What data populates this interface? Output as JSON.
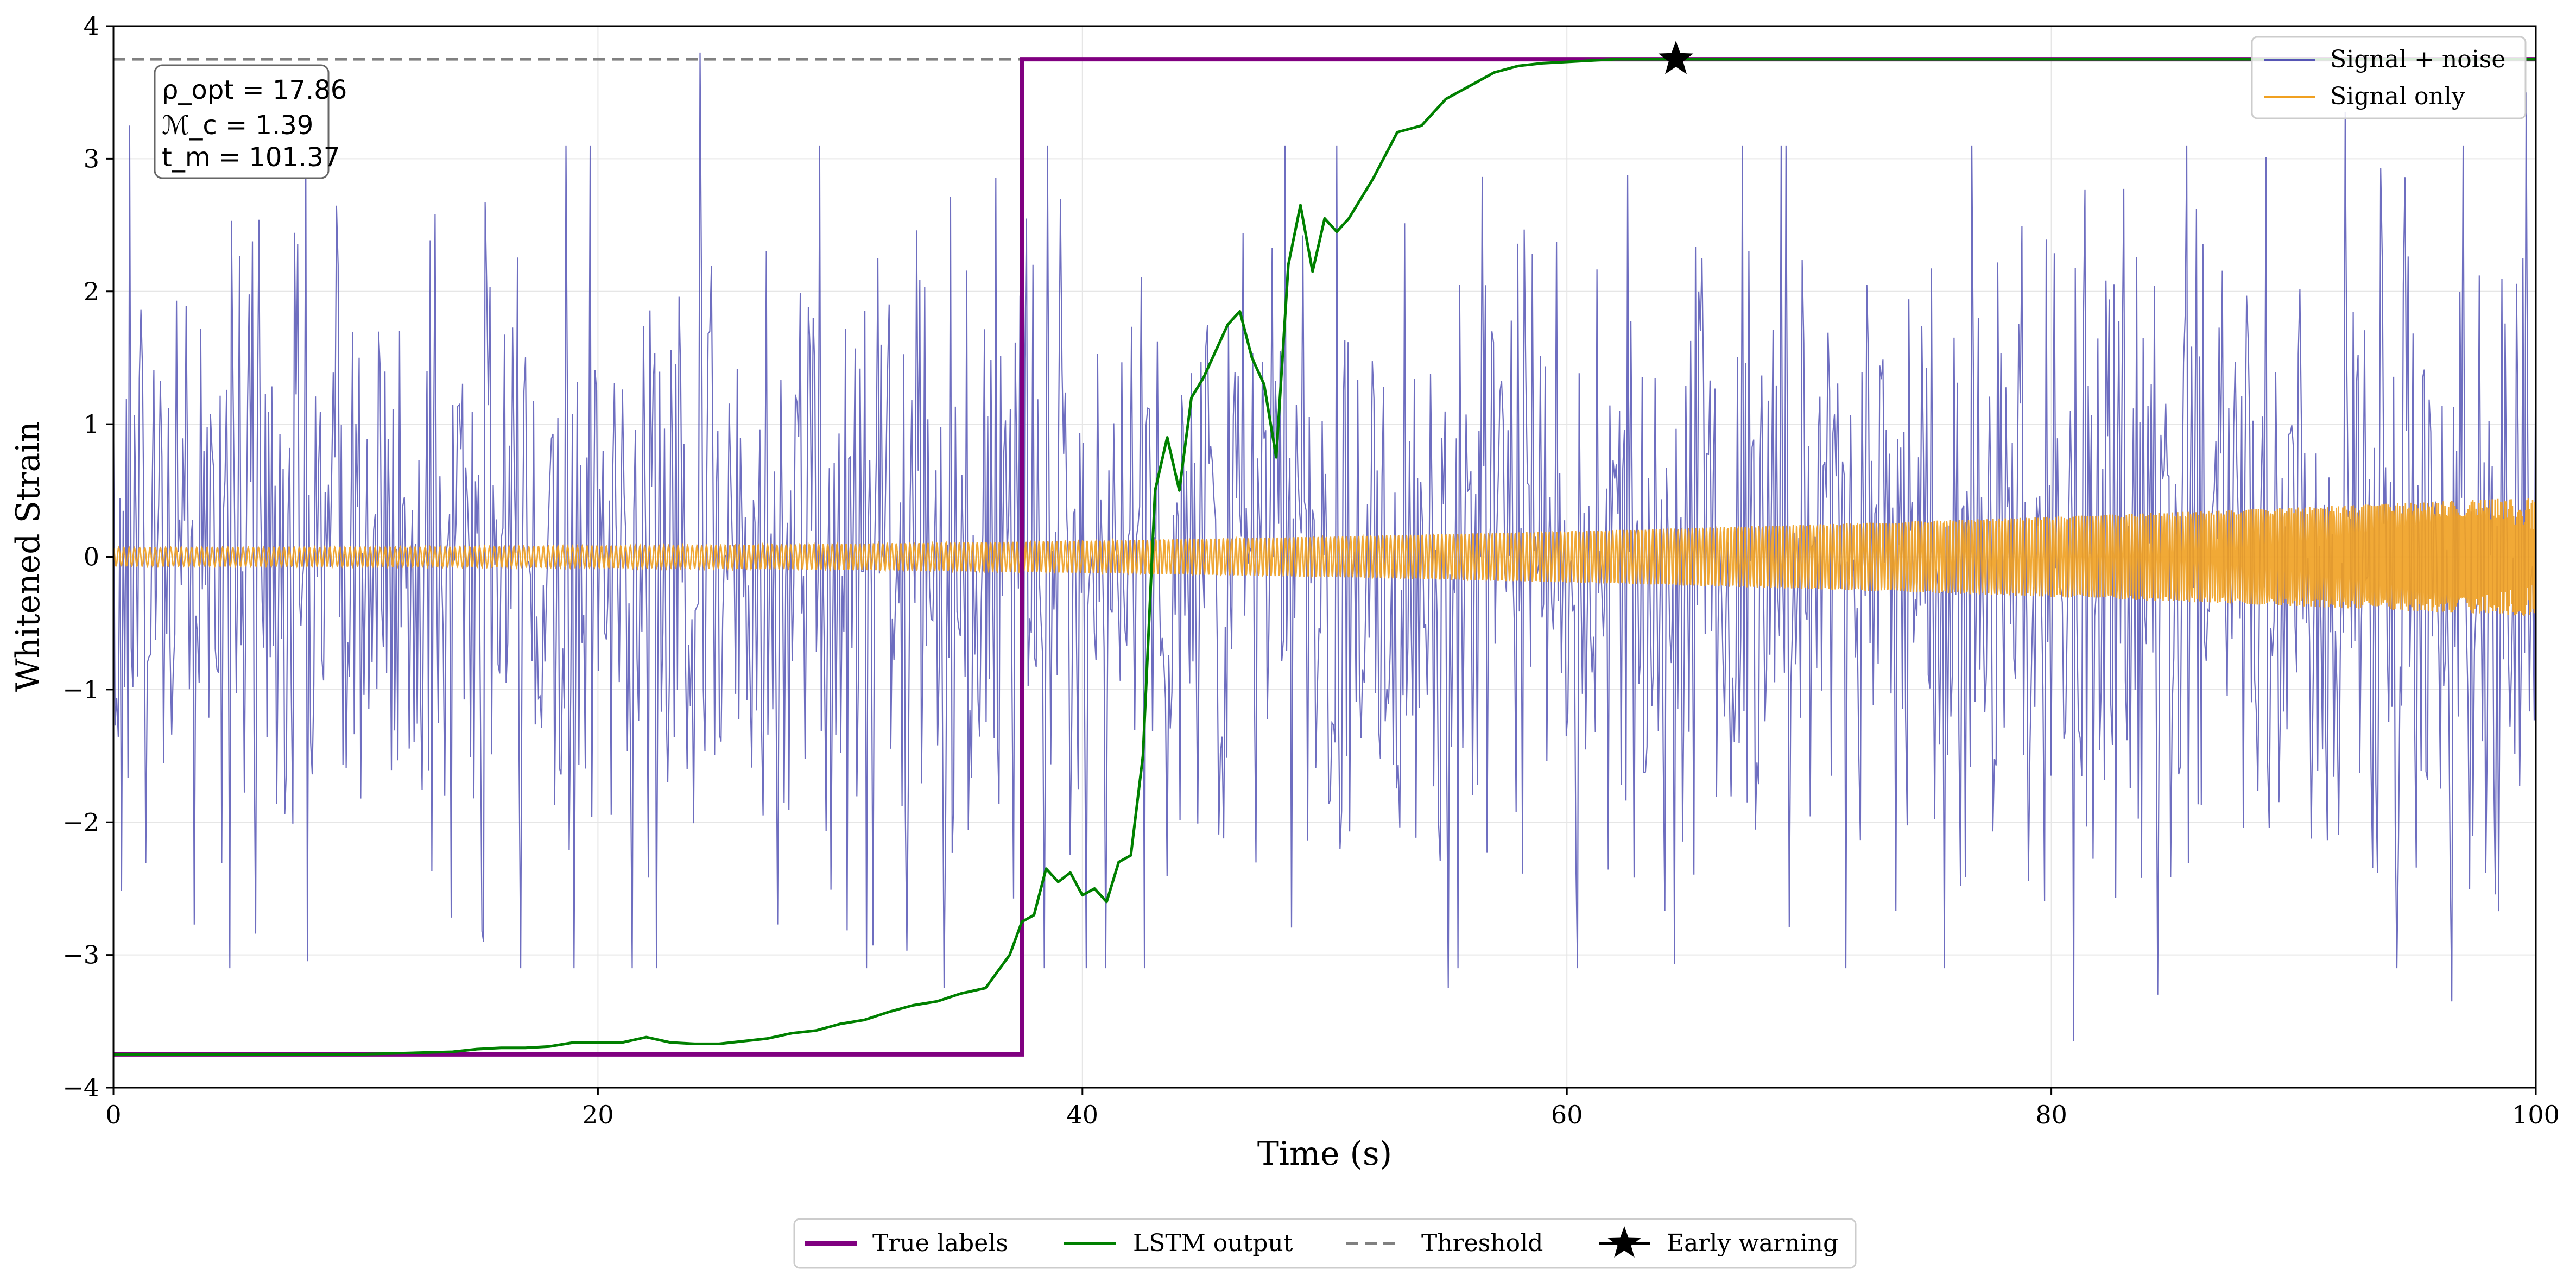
{
  "chart_data": {
    "type": "line",
    "xlabel": "Time (s)",
    "ylabel": "Whitened Strain",
    "xlim": [
      0,
      100
    ],
    "ylim": [
      -4,
      4
    ],
    "xticks": [
      0,
      20,
      40,
      60,
      80,
      100
    ],
    "yticks": [
      -4,
      -3,
      -2,
      -1,
      0,
      1,
      2,
      3,
      4
    ],
    "xtick_labels": [
      "0",
      "20",
      "40",
      "60",
      "80",
      "100"
    ],
    "ytick_labels": [
      "−4",
      "−3",
      "−2",
      "−1",
      "0",
      "1",
      "2",
      "3",
      "4"
    ],
    "grid": true,
    "threshold": {
      "name": "Threshold",
      "value": 3.75,
      "color": "#808080"
    },
    "true_labels": {
      "name": "True labels",
      "color": "#800080",
      "x": [
        0,
        37.5,
        37.5,
        100
      ],
      "y": [
        -3.75,
        -3.75,
        3.75,
        3.75
      ]
    },
    "lstm_output": {
      "name": "LSTM output",
      "color": "#008000",
      "x": [
        0,
        10,
        12,
        14,
        15,
        16,
        17,
        18,
        19,
        20,
        21,
        22,
        23,
        24,
        25,
        26,
        27,
        28,
        29,
        30,
        31,
        32,
        33,
        34,
        35,
        36,
        37,
        37.5,
        38,
        38.5,
        39,
        39.5,
        40,
        40.5,
        41,
        41.5,
        42,
        42.5,
        43,
        43.5,
        44,
        44.5,
        45,
        45.5,
        46,
        46.5,
        47,
        47.5,
        48,
        48.5,
        49,
        49.5,
        50,
        50.5,
        51,
        52,
        53,
        54,
        55,
        56,
        57,
        58,
        59,
        60,
        61,
        62,
        64.5,
        100
      ],
      "y": [
        -3.75,
        -3.75,
        -3.74,
        -3.73,
        -3.71,
        -3.7,
        -3.7,
        -3.69,
        -3.66,
        -3.66,
        -3.66,
        -3.62,
        -3.66,
        -3.67,
        -3.67,
        -3.65,
        -3.63,
        -3.59,
        -3.57,
        -3.52,
        -3.49,
        -3.43,
        -3.38,
        -3.35,
        -3.29,
        -3.25,
        -3.0,
        -2.75,
        -2.7,
        -2.35,
        -2.45,
        -2.38,
        -2.55,
        -2.5,
        -2.6,
        -2.3,
        -2.25,
        -1.5,
        0.5,
        0.9,
        0.5,
        1.2,
        1.35,
        1.55,
        1.75,
        1.85,
        1.5,
        1.3,
        0.75,
        2.2,
        2.65,
        2.15,
        2.55,
        2.45,
        2.55,
        2.85,
        3.2,
        3.25,
        3.45,
        3.55,
        3.65,
        3.7,
        3.72,
        3.73,
        3.74,
        3.75,
        3.75,
        3.75
      ]
    },
    "early_warning": {
      "name": "Early warning",
      "x": 64.5,
      "y": 3.75
    },
    "signal_noise": {
      "name": "Signal + noise",
      "color": "#5555b5",
      "samples": 1500,
      "typical_amplitude": 1.3,
      "extremes": [
        {
          "x": 0.7,
          "y": 3.25
        },
        {
          "x": 24.2,
          "y": 3.8
        },
        {
          "x": 15.3,
          "y": -2.9
        },
        {
          "x": 34.3,
          "y": -3.25
        },
        {
          "x": 55.1,
          "y": -3.25
        },
        {
          "x": 80.9,
          "y": -3.65
        },
        {
          "x": 84.4,
          "y": -3.3
        },
        {
          "x": 92.1,
          "y": 3.35
        },
        {
          "x": 96.5,
          "y": -3.35
        },
        {
          "x": 99.6,
          "y": 3.5
        }
      ]
    },
    "signal_only": {
      "name": "Signal only",
      "color": "#f0a020",
      "amplitude_start": 0.07,
      "amplitude_end": 0.45,
      "chirp": true
    },
    "legend_upper": [
      "Signal + noise",
      "Signal only"
    ],
    "legend_lower": [
      "True labels",
      "LSTM output",
      "Threshold",
      "Early warning"
    ],
    "legend_upper_position": "top-right",
    "legend_lower_position": "bottom-center",
    "annotation": {
      "lines": [
        "ρ_opt = 17.86",
        "ℳ_c = 1.39",
        "t_m = 101.37"
      ],
      "position": "top-left"
    }
  }
}
